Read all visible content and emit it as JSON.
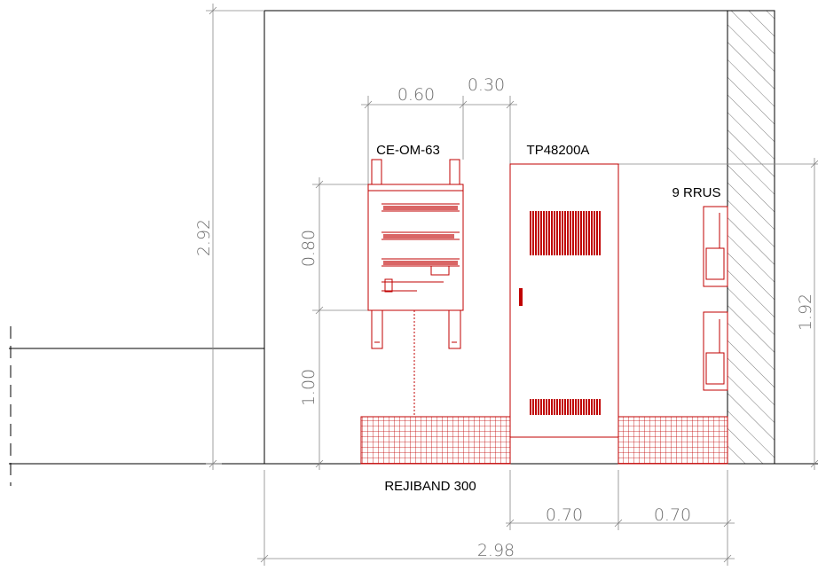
{
  "labels": {
    "cabinet": "CE-OM-63",
    "power_cabinet": "TP48200A",
    "rrus": "9 RRUS",
    "cable_tray": "REJIBAND 300"
  },
  "dimensions": {
    "room_height": "2.92",
    "cabinet_height": "0.80",
    "cabinet_elevation": "1.00",
    "power_cabinet_height": "1.92",
    "cabinet_width": "0.60",
    "cabinet_gap": "0.30",
    "power_cabinet_width": "0.70",
    "rrus_width": "0.70",
    "room_width": "2.98"
  }
}
